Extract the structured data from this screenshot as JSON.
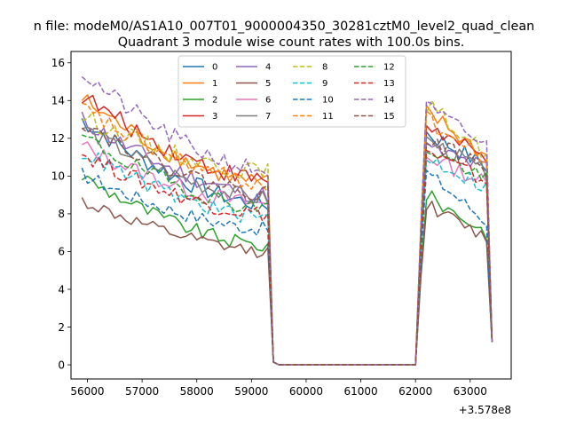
{
  "figure": {
    "suptitle": "n file: modeM0/AS1A10_007T01_9000004350_30281cztM0_level2_quad_clean"
  },
  "chart_data": {
    "type": "line",
    "title": "Quadrant 3 module wise count rates with 100.0s bins.",
    "xlabel": "",
    "ylabel": "",
    "x_offset_label": "+3.578e8",
    "xlim": [
      55700,
      63750
    ],
    "ylim": [
      -0.75,
      16.6
    ],
    "xticks": [
      56000,
      57000,
      58000,
      59000,
      60000,
      61000,
      62000,
      63000
    ],
    "yticks": [
      0,
      2,
      4,
      6,
      8,
      10,
      12,
      14,
      16
    ],
    "grid": false,
    "legend": {
      "placement": "upper center",
      "columns": 4
    },
    "x": [
      55900,
      56000,
      56100,
      56200,
      56300,
      56400,
      56500,
      56600,
      56700,
      56800,
      56900,
      57000,
      57100,
      57200,
      57300,
      57400,
      57500,
      57600,
      57700,
      57800,
      57900,
      58000,
      58100,
      58200,
      58300,
      58400,
      58500,
      58600,
      58700,
      58800,
      58900,
      59000,
      59100,
      59200,
      59300,
      59400,
      59500,
      59600,
      59700,
      59800,
      59900,
      60000,
      60100,
      60200,
      60300,
      60400,
      60500,
      60600,
      60700,
      60800,
      60900,
      61000,
      61100,
      61200,
      61300,
      61400,
      61500,
      61600,
      61700,
      61800,
      61900,
      62000,
      62100,
      62200,
      62300,
      62400,
      62500,
      62600,
      62700,
      62800,
      62900,
      63000,
      63100,
      63200,
      63300,
      63400
    ],
    "series": [
      {
        "name": "0",
        "color": "#1f77b4",
        "dashed": false,
        "start": 13.0,
        "end": 8.5,
        "peak": 12.3,
        "tail": 10.5,
        "jitter": 0.5
      },
      {
        "name": "1",
        "color": "#ff7f0e",
        "dashed": false,
        "start": 14.1,
        "end": 9.6,
        "peak": 13.4,
        "tail": 11.0,
        "jitter": 0.5
      },
      {
        "name": "2",
        "color": "#2ca02c",
        "dashed": false,
        "start": 10.0,
        "end": 6.3,
        "peak": 9.0,
        "tail": 7.0,
        "jitter": 0.4
      },
      {
        "name": "3",
        "color": "#d62728",
        "dashed": false,
        "start": 14.3,
        "end": 9.8,
        "peak": 12.7,
        "tail": 10.8,
        "jitter": 0.5
      },
      {
        "name": "4",
        "color": "#9467bd",
        "dashed": false,
        "start": 13.0,
        "end": 9.0,
        "peak": 11.5,
        "tail": 10.4,
        "jitter": 0.5
      },
      {
        "name": "5",
        "color": "#8c564b",
        "dashed": false,
        "start": 8.7,
        "end": 6.0,
        "peak": 8.5,
        "tail": 6.7,
        "jitter": 0.35
      },
      {
        "name": "6",
        "color": "#e377c2",
        "dashed": false,
        "start": 11.6,
        "end": 8.5,
        "peak": 11.1,
        "tail": 9.6,
        "jitter": 0.45
      },
      {
        "name": "7",
        "color": "#7f7f7f",
        "dashed": false,
        "start": 12.6,
        "end": 8.8,
        "peak": 11.9,
        "tail": 10.2,
        "jitter": 0.45
      },
      {
        "name": "8",
        "color": "#bcbd22",
        "dashed": true,
        "start": 13.2,
        "end": 10.2,
        "peak": 13.8,
        "tail": 11.2,
        "jitter": 0.5
      },
      {
        "name": "9",
        "color": "#17becf",
        "dashed": true,
        "start": 11.3,
        "end": 7.8,
        "peak": 11.0,
        "tail": 9.4,
        "jitter": 0.45
      },
      {
        "name": "10",
        "color": "#1f77b4",
        "dashed": true,
        "start": 10.1,
        "end": 7.2,
        "peak": 10.2,
        "tail": 7.6,
        "jitter": 0.4
      },
      {
        "name": "11",
        "color": "#ff7f0e",
        "dashed": true,
        "start": 13.6,
        "end": 9.6,
        "peak": 13.0,
        "tail": 10.7,
        "jitter": 0.5
      },
      {
        "name": "12",
        "color": "#2ca02c",
        "dashed": true,
        "start": 12.1,
        "end": 8.3,
        "peak": 11.5,
        "tail": 9.8,
        "jitter": 0.45
      },
      {
        "name": "13",
        "color": "#d62728",
        "dashed": true,
        "start": 11.2,
        "end": 8.0,
        "peak": 11.3,
        "tail": 9.7,
        "jitter": 0.45
      },
      {
        "name": "14",
        "color": "#9467bd",
        "dashed": true,
        "start": 15.5,
        "end": 10.3,
        "peak": 13.6,
        "tail": 11.6,
        "jitter": 0.5
      },
      {
        "name": "15",
        "color": "#8c564b",
        "dashed": true,
        "start": 12.9,
        "end": 9.1,
        "peak": 12.0,
        "tail": 10.3,
        "jitter": 0.45
      }
    ],
    "low_level": 0.0
  }
}
